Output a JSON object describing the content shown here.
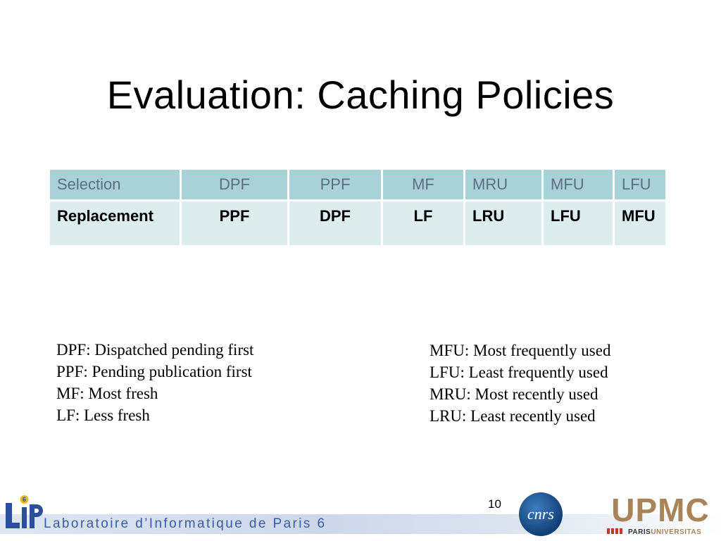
{
  "slide": {
    "title": "Evaluation: Caching Policies",
    "page_number": "10"
  },
  "table": {
    "header": [
      "Selection",
      "DPF",
      "PPF",
      "MF",
      "MRU",
      "MFU",
      "LFU"
    ],
    "row": [
      "Replacement",
      "PPF",
      "DPF",
      "LF",
      "LRU",
      "LFU",
      "MFU"
    ]
  },
  "legend_left": [
    "DPF: Dispatched pending first",
    "PPF: Pending publication first",
    "MF: Most fresh",
    "LF: Less fresh"
  ],
  "legend_right": [
    "MFU: Most frequently used",
    "LFU: Least frequently used",
    "MRU: Most recently used",
    "LRU: Least recently used"
  ],
  "footer": {
    "lab_name": "Laboratoire d’Informatique de Paris 6",
    "lip_logo_text": "LIP6",
    "cnrs_logo_text": "cnrs",
    "upmc_logo_text": "UPMC",
    "upmc_tagline": "PARISUNIVERSITAS"
  },
  "colors": {
    "header_fill": "#a8d2d8",
    "row_fill": "#dcecef",
    "header_text": "#5c6e85",
    "lab_text": "#3a5ba6",
    "upmc_brown": "#a98459"
  }
}
